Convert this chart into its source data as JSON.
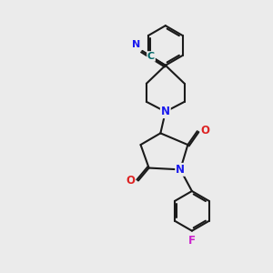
{
  "bg_color": "#ebebeb",
  "bond_color": "#1a1a1a",
  "N_color": "#1a1aee",
  "O_color": "#dd2222",
  "F_color": "#cc22cc",
  "C_label_color": "#006666",
  "lw": 1.5,
  "xlim": [
    0,
    3
  ],
  "ylim": [
    0,
    3.3
  ]
}
